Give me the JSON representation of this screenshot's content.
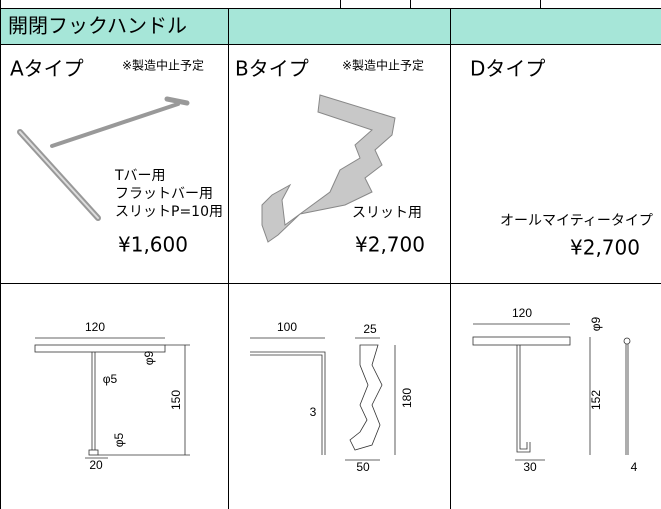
{
  "header": {
    "title": "開閉フックハンドル"
  },
  "products": [
    {
      "name": "Aタイプ",
      "note": "※製造中止予定",
      "description": [
        "Tバー用",
        "フラットバー用",
        "スリットP=10用"
      ],
      "price": "¥1,600",
      "dimensions": [
        "120",
        "φ9",
        "φ5",
        "150",
        "φ5",
        "20"
      ]
    },
    {
      "name": "Bタイプ",
      "note": "※製造中止予定",
      "description": [
        "スリット用"
      ],
      "price": "¥2,700",
      "dimensions": [
        "100",
        "25",
        "3",
        "180",
        "50"
      ]
    },
    {
      "name": "Dタイプ",
      "description": [
        "オールマイティータイプ"
      ],
      "price": "¥2,700",
      "dimensions": [
        "120",
        "φ9",
        "152",
        "30",
        "4"
      ]
    }
  ]
}
